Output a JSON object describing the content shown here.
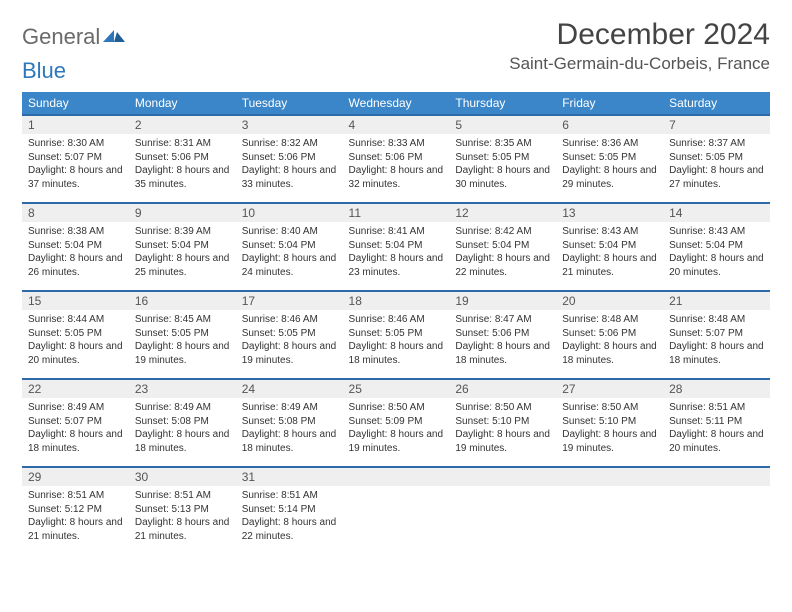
{
  "logo": {
    "part1": "General",
    "part2": "Blue"
  },
  "title": "December 2024",
  "location": "Saint-Germain-du-Corbeis, France",
  "colors": {
    "header_bg": "#3a86c8",
    "header_border": "#2d6aa8",
    "daynum_bg": "#efefef",
    "logo_gray": "#6a6a6a",
    "logo_blue": "#2d78bd"
  },
  "day_labels": [
    "Sunday",
    "Monday",
    "Tuesday",
    "Wednesday",
    "Thursday",
    "Friday",
    "Saturday"
  ],
  "days": [
    {
      "n": 1,
      "sr": "8:30 AM",
      "ss": "5:07 PM",
      "dl": "8 hours and 37 minutes."
    },
    {
      "n": 2,
      "sr": "8:31 AM",
      "ss": "5:06 PM",
      "dl": "8 hours and 35 minutes."
    },
    {
      "n": 3,
      "sr": "8:32 AM",
      "ss": "5:06 PM",
      "dl": "8 hours and 33 minutes."
    },
    {
      "n": 4,
      "sr": "8:33 AM",
      "ss": "5:06 PM",
      "dl": "8 hours and 32 minutes."
    },
    {
      "n": 5,
      "sr": "8:35 AM",
      "ss": "5:05 PM",
      "dl": "8 hours and 30 minutes."
    },
    {
      "n": 6,
      "sr": "8:36 AM",
      "ss": "5:05 PM",
      "dl": "8 hours and 29 minutes."
    },
    {
      "n": 7,
      "sr": "8:37 AM",
      "ss": "5:05 PM",
      "dl": "8 hours and 27 minutes."
    },
    {
      "n": 8,
      "sr": "8:38 AM",
      "ss": "5:04 PM",
      "dl": "8 hours and 26 minutes."
    },
    {
      "n": 9,
      "sr": "8:39 AM",
      "ss": "5:04 PM",
      "dl": "8 hours and 25 minutes."
    },
    {
      "n": 10,
      "sr": "8:40 AM",
      "ss": "5:04 PM",
      "dl": "8 hours and 24 minutes."
    },
    {
      "n": 11,
      "sr": "8:41 AM",
      "ss": "5:04 PM",
      "dl": "8 hours and 23 minutes."
    },
    {
      "n": 12,
      "sr": "8:42 AM",
      "ss": "5:04 PM",
      "dl": "8 hours and 22 minutes."
    },
    {
      "n": 13,
      "sr": "8:43 AM",
      "ss": "5:04 PM",
      "dl": "8 hours and 21 minutes."
    },
    {
      "n": 14,
      "sr": "8:43 AM",
      "ss": "5:04 PM",
      "dl": "8 hours and 20 minutes."
    },
    {
      "n": 15,
      "sr": "8:44 AM",
      "ss": "5:05 PM",
      "dl": "8 hours and 20 minutes."
    },
    {
      "n": 16,
      "sr": "8:45 AM",
      "ss": "5:05 PM",
      "dl": "8 hours and 19 minutes."
    },
    {
      "n": 17,
      "sr": "8:46 AM",
      "ss": "5:05 PM",
      "dl": "8 hours and 19 minutes."
    },
    {
      "n": 18,
      "sr": "8:46 AM",
      "ss": "5:05 PM",
      "dl": "8 hours and 18 minutes."
    },
    {
      "n": 19,
      "sr": "8:47 AM",
      "ss": "5:06 PM",
      "dl": "8 hours and 18 minutes."
    },
    {
      "n": 20,
      "sr": "8:48 AM",
      "ss": "5:06 PM",
      "dl": "8 hours and 18 minutes."
    },
    {
      "n": 21,
      "sr": "8:48 AM",
      "ss": "5:07 PM",
      "dl": "8 hours and 18 minutes."
    },
    {
      "n": 22,
      "sr": "8:49 AM",
      "ss": "5:07 PM",
      "dl": "8 hours and 18 minutes."
    },
    {
      "n": 23,
      "sr": "8:49 AM",
      "ss": "5:08 PM",
      "dl": "8 hours and 18 minutes."
    },
    {
      "n": 24,
      "sr": "8:49 AM",
      "ss": "5:08 PM",
      "dl": "8 hours and 18 minutes."
    },
    {
      "n": 25,
      "sr": "8:50 AM",
      "ss": "5:09 PM",
      "dl": "8 hours and 19 minutes."
    },
    {
      "n": 26,
      "sr": "8:50 AM",
      "ss": "5:10 PM",
      "dl": "8 hours and 19 minutes."
    },
    {
      "n": 27,
      "sr": "8:50 AM",
      "ss": "5:10 PM",
      "dl": "8 hours and 19 minutes."
    },
    {
      "n": 28,
      "sr": "8:51 AM",
      "ss": "5:11 PM",
      "dl": "8 hours and 20 minutes."
    },
    {
      "n": 29,
      "sr": "8:51 AM",
      "ss": "5:12 PM",
      "dl": "8 hours and 21 minutes."
    },
    {
      "n": 30,
      "sr": "8:51 AM",
      "ss": "5:13 PM",
      "dl": "8 hours and 21 minutes."
    },
    {
      "n": 31,
      "sr": "8:51 AM",
      "ss": "5:14 PM",
      "dl": "8 hours and 22 minutes."
    }
  ],
  "labels": {
    "sunrise": "Sunrise:",
    "sunset": "Sunset:",
    "daylight": "Daylight:"
  },
  "layout": {
    "first_weekday_index": 0,
    "trailing_blanks": 4
  }
}
